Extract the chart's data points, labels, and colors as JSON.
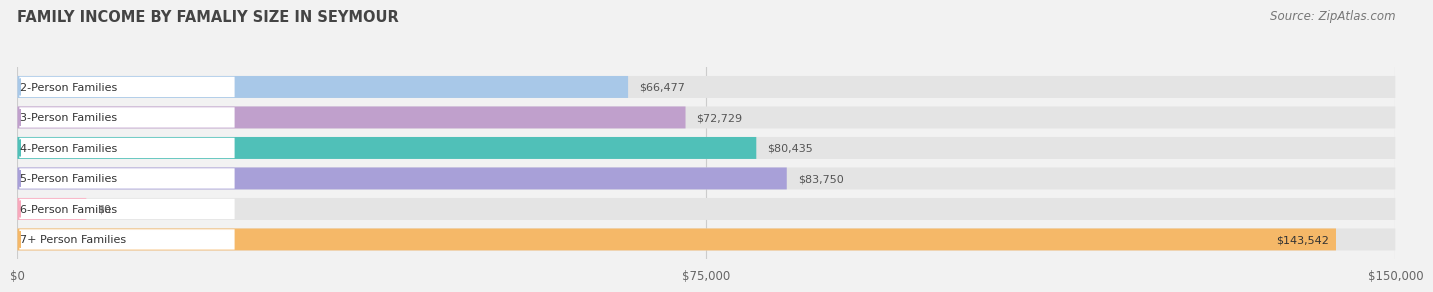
{
  "title": "FAMILY INCOME BY FAMALIY SIZE IN SEYMOUR",
  "source": "Source: ZipAtlas.com",
  "categories": [
    "2-Person Families",
    "3-Person Families",
    "4-Person Families",
    "5-Person Families",
    "6-Person Families",
    "7+ Person Families"
  ],
  "values": [
    66477,
    72729,
    80435,
    83750,
    0,
    143542
  ],
  "bar_colors": [
    "#a8c8e8",
    "#c0a0cc",
    "#50c0b8",
    "#a8a0d8",
    "#f8a8bc",
    "#f5b868"
  ],
  "value_labels": [
    "$66,477",
    "$72,729",
    "$80,435",
    "$83,750",
    "$0",
    "$143,542"
  ],
  "xlim": [
    0,
    150000
  ],
  "xtick_values": [
    0,
    75000,
    150000
  ],
  "xtick_labels": [
    "$0",
    "$75,000",
    "$150,000"
  ],
  "background_color": "#f2f2f2",
  "bar_bg_color": "#e4e4e4",
  "title_fontsize": 10.5,
  "source_fontsize": 8.5,
  "label_fontsize": 8,
  "value_fontsize": 8,
  "tick_fontsize": 8.5,
  "bar_height": 0.72,
  "six_person_value": 7500
}
